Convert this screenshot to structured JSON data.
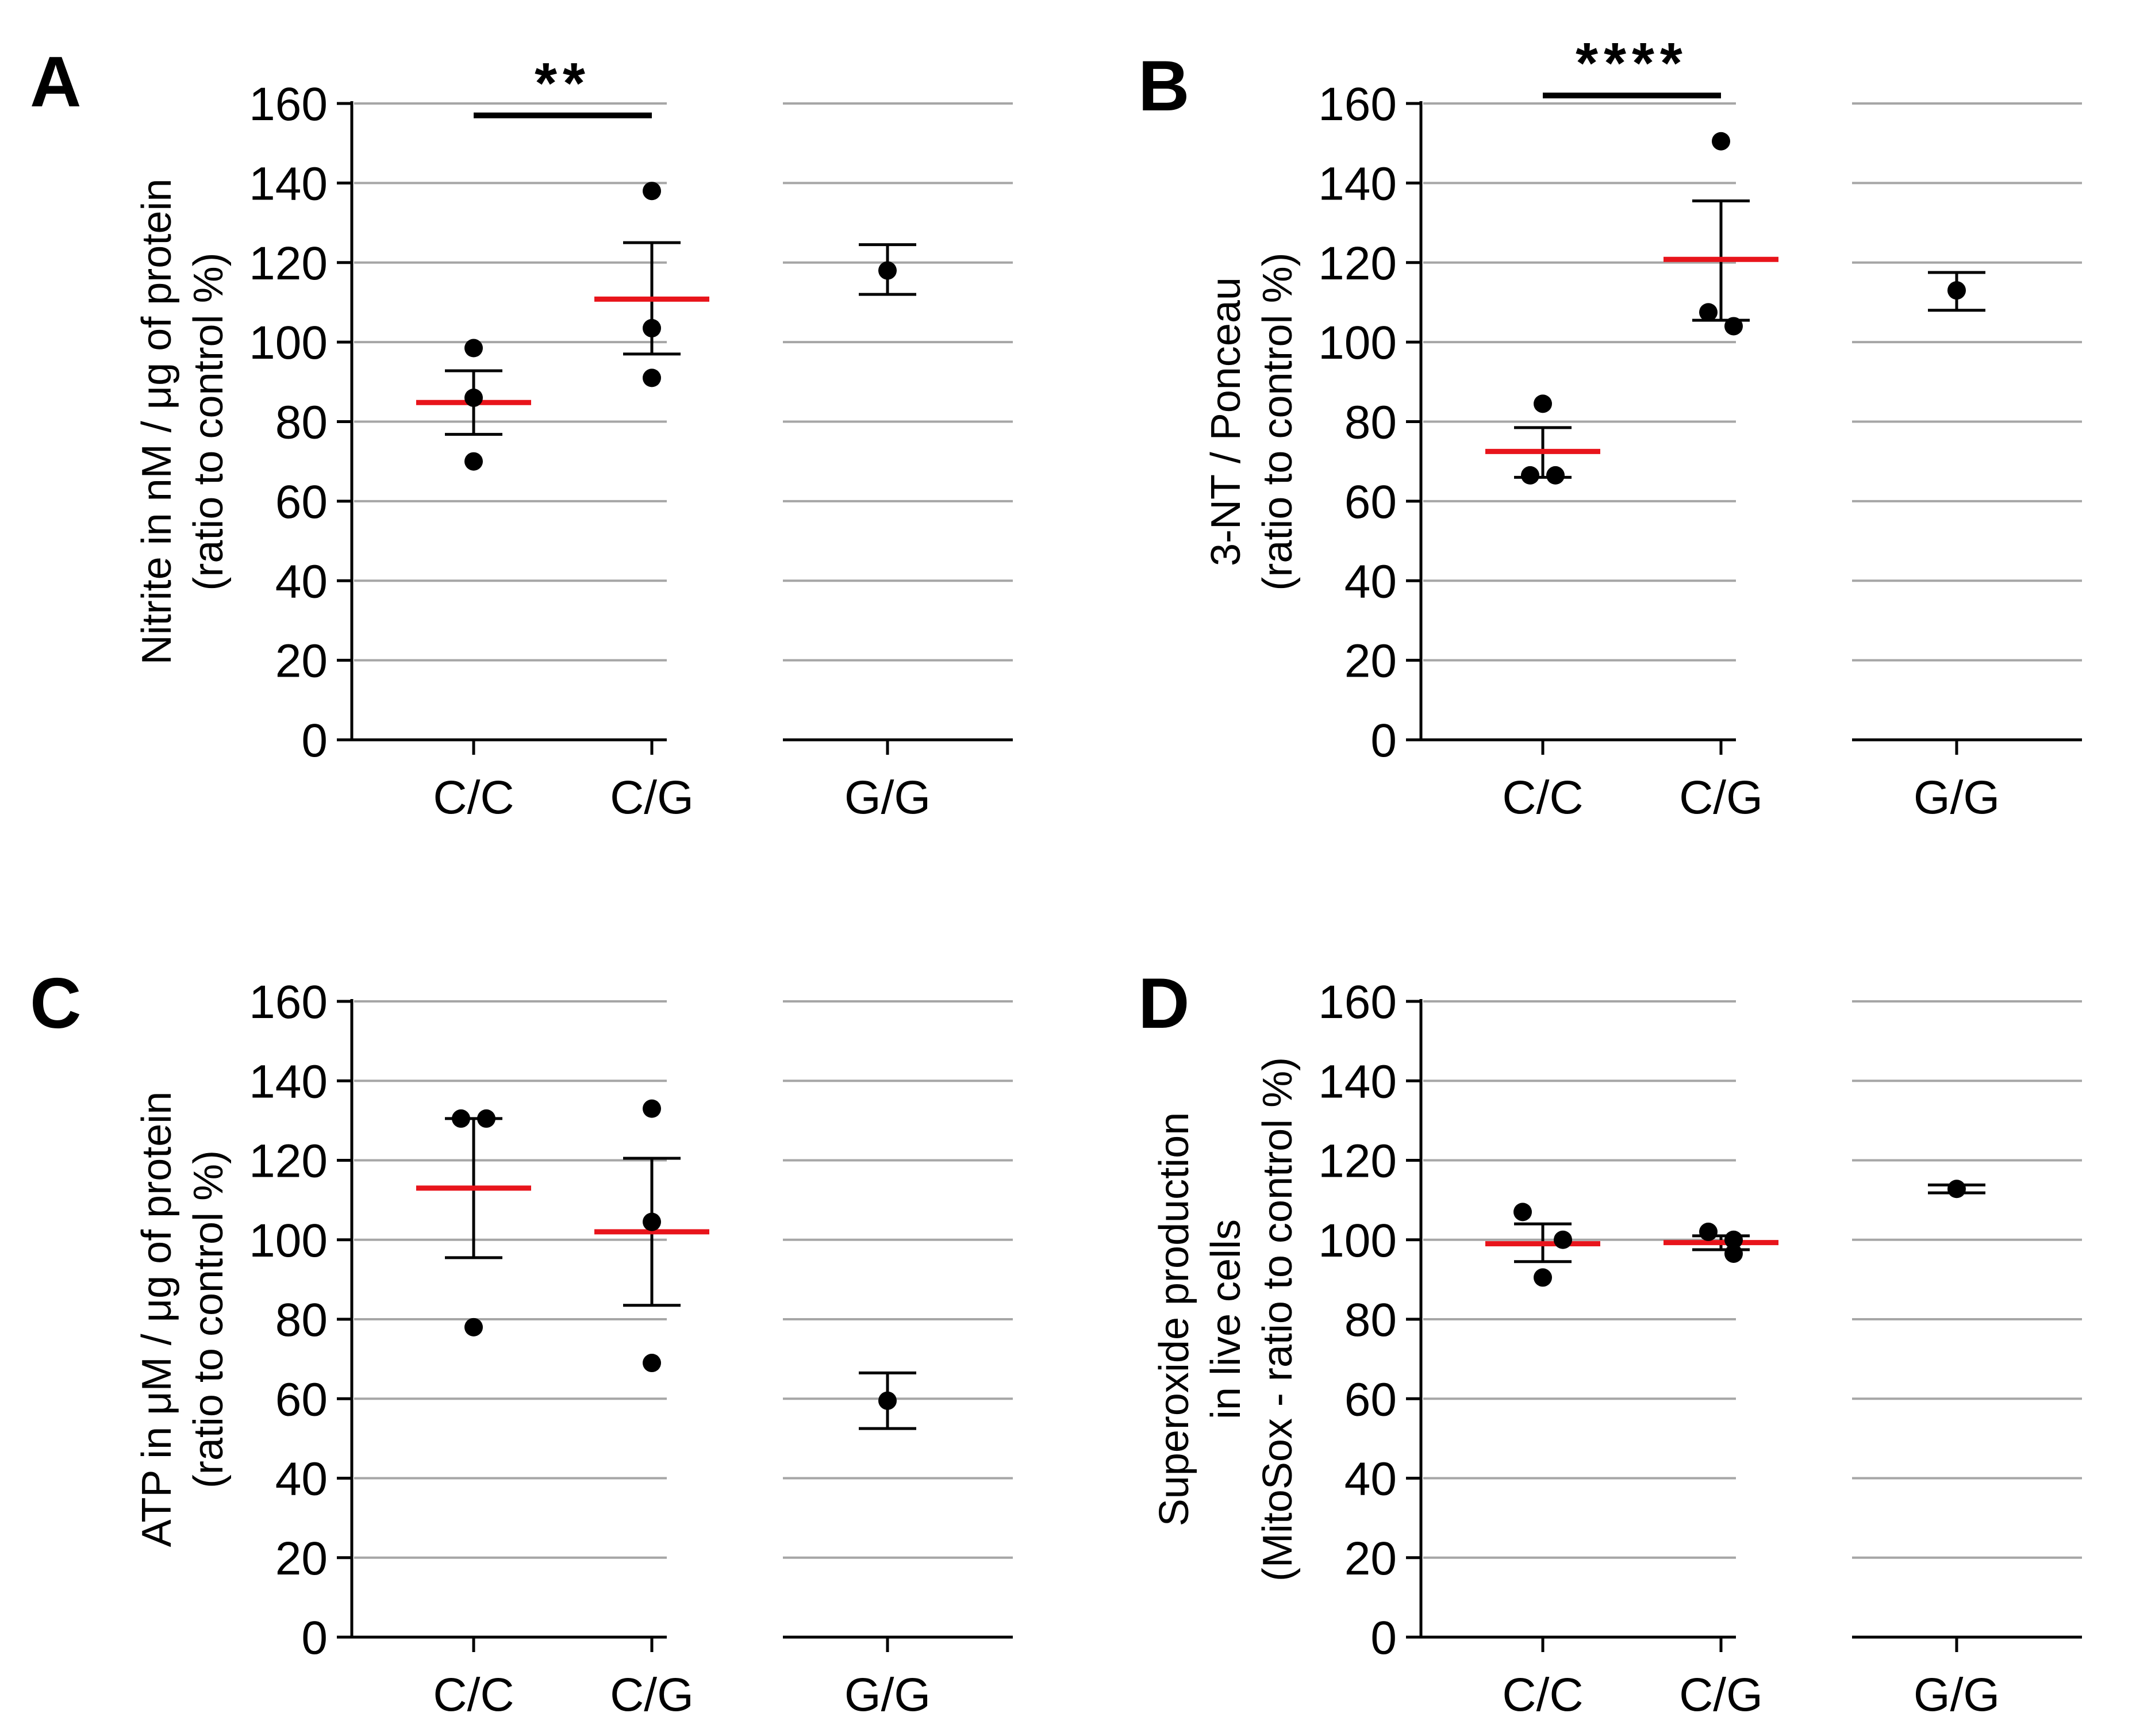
{
  "chart_data": [
    {
      "panel": "A",
      "type": "scatter",
      "ylabel_lines": [
        "Nitrite in nM / μg of protein",
        "(ratio to control %)"
      ],
      "ylim": [
        0,
        160
      ],
      "yticks": [
        0,
        20,
        40,
        60,
        80,
        100,
        120,
        140,
        160
      ],
      "grid": true,
      "categories": [
        "C/C",
        "C/G",
        "G/G"
      ],
      "groups": [
        {
          "category": "C/C",
          "points": [
            98.5,
            86,
            70
          ],
          "mean": 84.8,
          "sem": [
            76.8,
            92.8
          ]
        },
        {
          "category": "C/G",
          "points": [
            138,
            103.5,
            91
          ],
          "mean": 110.8,
          "sem": [
            97,
            125
          ]
        },
        {
          "category": "G/G",
          "points": [
            118
          ],
          "mean": null,
          "sem": [
            112,
            124.5
          ]
        }
      ],
      "significance": {
        "from": "C/C",
        "to": "C/G",
        "label": "**",
        "y": 157
      }
    },
    {
      "panel": "B",
      "type": "scatter",
      "ylabel_lines": [
        "3-NT / Ponceau",
        "(ratio to control %)"
      ],
      "ylim": [
        0,
        160
      ],
      "yticks": [
        0,
        20,
        40,
        60,
        80,
        100,
        120,
        140,
        160
      ],
      "grid": true,
      "categories": [
        "C/C",
        "C/G",
        "G/G"
      ],
      "groups": [
        {
          "category": "C/C",
          "points": [
            84.5,
            66.5,
            66.5
          ],
          "mean": 72.5,
          "sem": [
            66,
            78.5
          ]
        },
        {
          "category": "C/G",
          "points": [
            150.5,
            107.5,
            104
          ],
          "mean": 120.8,
          "sem": [
            105.5,
            135.5
          ]
        },
        {
          "category": "G/G",
          "points": [
            113
          ],
          "mean": null,
          "sem": [
            108,
            117.5
          ]
        }
      ],
      "significance": {
        "from": "C/C",
        "to": "C/G",
        "label": "****",
        "y": 162
      }
    },
    {
      "panel": "C",
      "type": "scatter",
      "ylabel_lines": [
        "ATP in μM / μg of protein",
        "(ratio to control %)"
      ],
      "ylim": [
        0,
        160
      ],
      "yticks": [
        0,
        20,
        40,
        60,
        80,
        100,
        120,
        140,
        160
      ],
      "grid": true,
      "categories": [
        "C/C",
        "C/G",
        "G/G"
      ],
      "groups": [
        {
          "category": "C/C",
          "points": [
            130.5,
            130.5,
            78
          ],
          "mean": 113,
          "sem": [
            95.5,
            130.5
          ]
        },
        {
          "category": "C/G",
          "points": [
            133,
            104.5,
            69
          ],
          "mean": 102,
          "sem": [
            83.5,
            120.5
          ]
        },
        {
          "category": "G/G",
          "points": [
            59.5
          ],
          "mean": null,
          "sem": [
            52.5,
            66.5
          ]
        }
      ],
      "significance": null
    },
    {
      "panel": "D",
      "type": "scatter",
      "ylabel_lines": [
        "Superoxide production",
        "in live cells",
        "(MitoSox - ratio to control %)"
      ],
      "ylim": [
        0,
        160
      ],
      "yticks": [
        0,
        20,
        40,
        60,
        80,
        100,
        120,
        140,
        160
      ],
      "grid": true,
      "categories": [
        "C/C",
        "C/G",
        "G/G"
      ],
      "groups": [
        {
          "category": "C/C",
          "points": [
            107,
            100,
            90.5
          ],
          "mean": 99,
          "sem": [
            94.5,
            104
          ]
        },
        {
          "category": "C/G",
          "points": [
            102,
            100,
            96.5
          ],
          "mean": 99.3,
          "sem": [
            97.5,
            101
          ]
        },
        {
          "category": "G/G",
          "points": [
            112.8
          ],
          "mean": null,
          "sem": [
            111.8,
            113.8
          ]
        }
      ],
      "significance": null
    }
  ],
  "colors": {
    "mean": "#e8141b",
    "grid": "#a6a6a6",
    "ink": "#000000"
  }
}
